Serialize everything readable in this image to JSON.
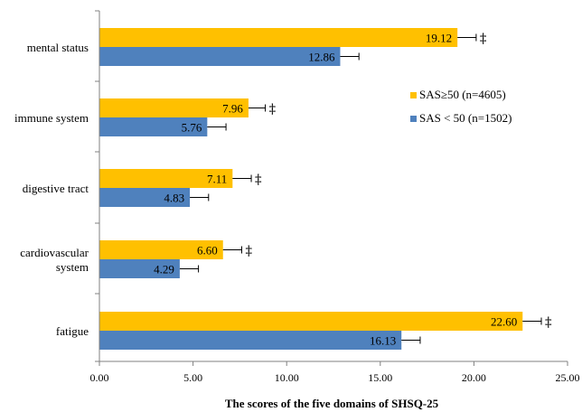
{
  "chart_data": {
    "type": "bar",
    "orientation": "horizontal",
    "categories": [
      "mental status",
      "immune system",
      "digestive tract",
      "cardiovascular system",
      "fatigue"
    ],
    "category_lines": [
      [
        "mental status"
      ],
      [
        "immune system"
      ],
      [
        "digestive tract"
      ],
      [
        "cardiovascular",
        "system"
      ],
      [
        "fatigue"
      ]
    ],
    "series": [
      {
        "name": "SAS≥50 (n=4605)",
        "color": "#FFC000",
        "values": [
          19.12,
          7.96,
          7.11,
          6.6,
          22.6
        ],
        "labels": [
          "19.12",
          "7.96",
          "7.11",
          "6.60",
          "22.60"
        ],
        "errors": [
          1.0,
          0.9,
          1.0,
          1.0,
          1.0
        ]
      },
      {
        "name": "SAS < 50 (n=1502)",
        "color": "#4F81BD",
        "values": [
          12.86,
          5.76,
          4.83,
          4.29,
          16.13
        ],
        "labels": [
          "12.86",
          "5.76",
          "4.83",
          "4.29",
          "16.13"
        ],
        "errors": [
          1.0,
          1.0,
          1.0,
          1.0,
          1.0
        ]
      }
    ],
    "significance_marks": [
      "‡",
      "‡",
      "‡",
      "‡",
      "‡"
    ],
    "xlabel": "The scores of the five domains of SHSQ-25",
    "xlim": [
      0,
      25
    ],
    "xticks": [
      "0.00",
      "5.00",
      "10.00",
      "15.00",
      "20.00",
      "25.00"
    ],
    "grid": false,
    "legend_position": "right"
  }
}
